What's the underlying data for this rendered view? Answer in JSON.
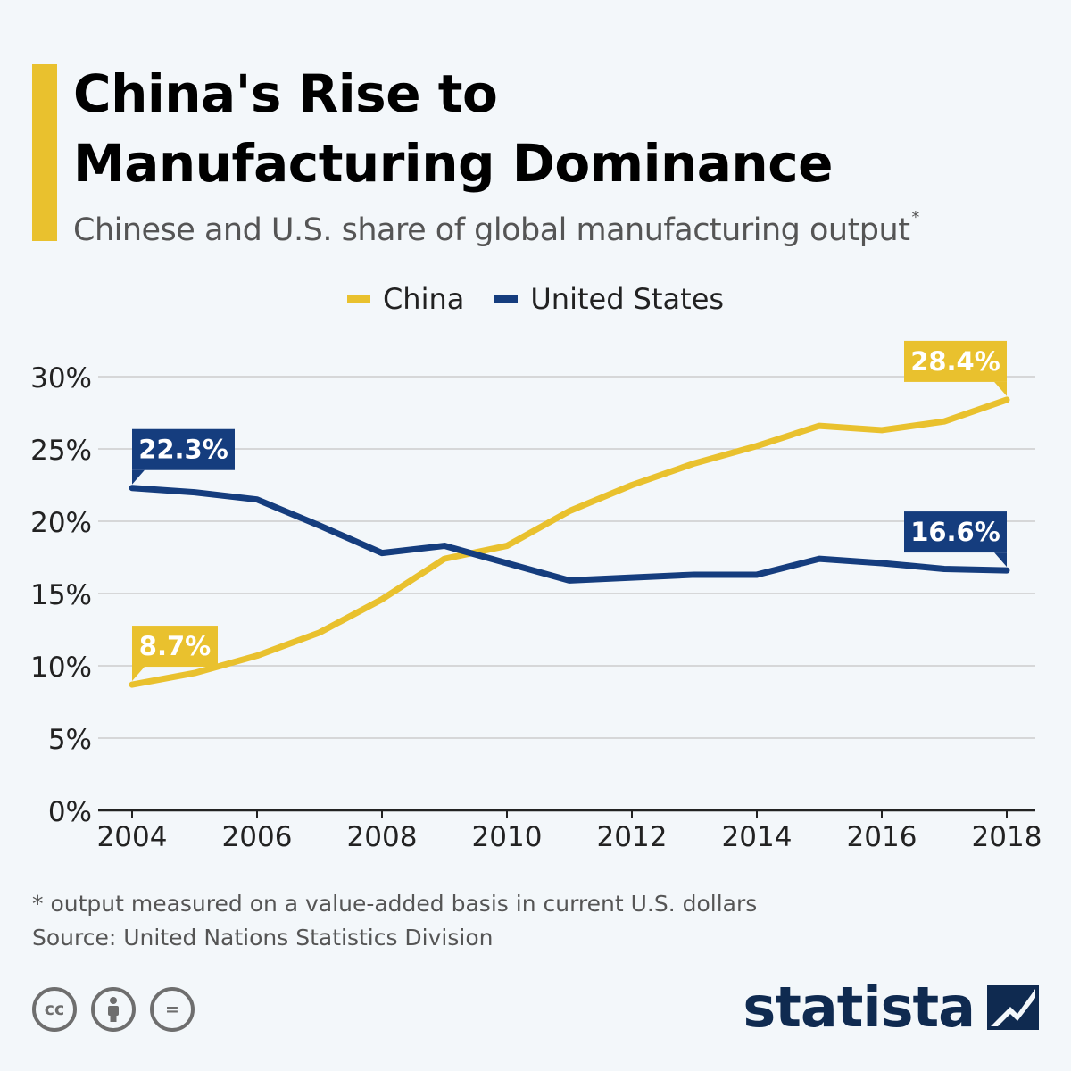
{
  "header": {
    "title_line1": "China's Rise to",
    "title_line2": "Manufacturing Dominance",
    "subtitle": "Chinese and U.S. share of global manufacturing output",
    "subtitle_mark": "*",
    "accent_color": "#e9c12e"
  },
  "legend": {
    "items": [
      {
        "label": "China",
        "color": "#e9c12e"
      },
      {
        "label": "United States",
        "color": "#153d7e"
      }
    ]
  },
  "chart_data": {
    "type": "line",
    "x": [
      2004,
      2005,
      2006,
      2007,
      2008,
      2009,
      2010,
      2011,
      2012,
      2013,
      2014,
      2015,
      2016,
      2017,
      2018
    ],
    "series": [
      {
        "name": "China",
        "color": "#e9c12e",
        "values": [
          8.7,
          9.5,
          10.7,
          12.3,
          14.6,
          17.4,
          18.3,
          20.7,
          22.5,
          24.0,
          25.2,
          26.6,
          26.3,
          26.9,
          28.4
        ]
      },
      {
        "name": "United States",
        "color": "#153d7e",
        "values": [
          22.3,
          22.0,
          21.5,
          19.7,
          17.8,
          18.3,
          17.1,
          15.9,
          16.1,
          16.3,
          16.3,
          17.4,
          17.1,
          16.7,
          16.6
        ]
      }
    ],
    "x_ticks": [
      "2004",
      "2006",
      "2008",
      "2010",
      "2012",
      "2014",
      "2016",
      "2018"
    ],
    "x_tick_values": [
      2004,
      2006,
      2008,
      2010,
      2012,
      2014,
      2016,
      2018
    ],
    "y_ticks": [
      "0%",
      "5%",
      "10%",
      "15%",
      "20%",
      "25%",
      "30%"
    ],
    "y_tick_values": [
      0,
      5,
      10,
      15,
      20,
      25,
      30
    ],
    "xlim": [
      2004,
      2018
    ],
    "ylim": [
      0,
      30
    ],
    "grid": true,
    "annotations": [
      {
        "text": "22.3%",
        "series": "United States",
        "x": 2004,
        "y": 22.3
      },
      {
        "text": "8.7%",
        "series": "China",
        "x": 2004,
        "y": 8.7
      },
      {
        "text": "28.4%",
        "series": "China",
        "x": 2018,
        "y": 28.4
      },
      {
        "text": "16.6%",
        "series": "United States",
        "x": 2018,
        "y": 16.6
      }
    ]
  },
  "footer": {
    "footnote": "* output measured on a value-added basis in current U.S. dollars",
    "source": "Source: United Nations Statistics Division",
    "license_icons": [
      "cc-icon",
      "attribution-icon",
      "no-derivatives-icon"
    ],
    "license_cc_text": "cc",
    "license_nd_text": "=",
    "brand": "statista"
  }
}
